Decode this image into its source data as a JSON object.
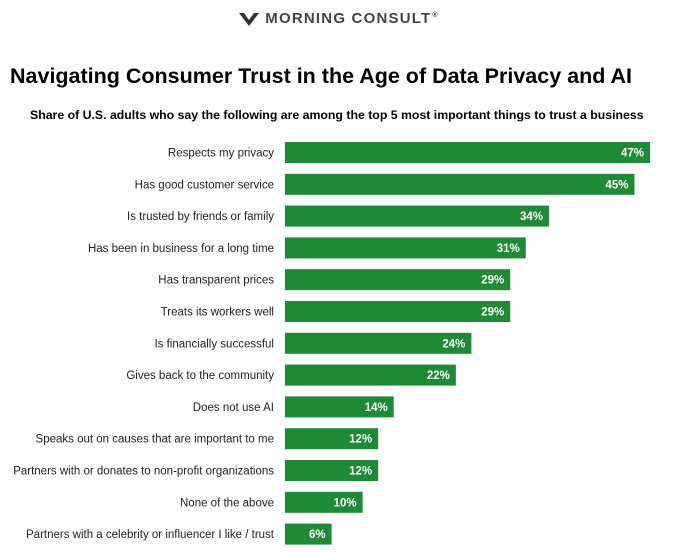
{
  "brand": {
    "name": "MORNING CONSULT",
    "reg": "®",
    "logo_icon": "mc-chevron-logo-icon"
  },
  "chart_data": {
    "type": "bar",
    "orientation": "horizontal",
    "title": "Navigating Consumer Trust in the Age of Data Privacy and AI",
    "subtitle": "Share of U.S. adults who say the following are among the top 5 most important things to trust a business",
    "categories": [
      "Respects my privacy",
      "Has good customer service",
      "Is trusted by friends or family",
      "Has been in business for a long time",
      "Has transparent prices",
      "Treats its workers well",
      "Is financially successful",
      "Gives back to the community",
      "Does not use AI",
      "Speaks out on causes that are  important to me",
      "Partners with or donates to non-profit organizations",
      "None of the above",
      "Partners with a celebrity or influencer I like / trust"
    ],
    "values": [
      47,
      45,
      34,
      31,
      29,
      29,
      24,
      22,
      14,
      12,
      12,
      10,
      6
    ],
    "value_labels": [
      "47%",
      "45%",
      "34%",
      "31%",
      "29%",
      "29%",
      "24%",
      "22%",
      "14%",
      "12%",
      "12%",
      "10%",
      "6%"
    ],
    "unit": "%",
    "xlim": [
      0,
      47
    ],
    "grid": false,
    "legend": "none",
    "bar_color": "#1e8a35",
    "label_color": "#ffffff"
  }
}
